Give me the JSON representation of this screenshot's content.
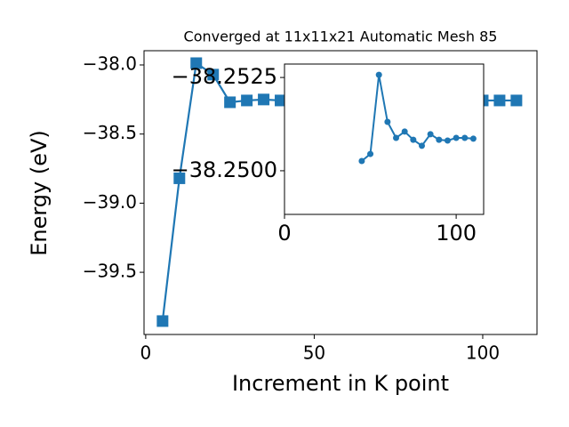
{
  "chart_data": [
    {
      "type": "line",
      "title": "Converged at 11x11x21 Automatic Mesh 85",
      "xlabel": "Increment in K point",
      "ylabel": "Energy (eV)",
      "marker": "square",
      "color": "#1f77b4",
      "x": [
        5,
        10,
        15,
        20,
        25,
        30,
        35,
        40,
        100,
        105,
        110
      ],
      "values": [
        -39.853,
        -38.82,
        -37.987,
        -38.07,
        -38.27,
        -38.257,
        -38.25,
        -38.257,
        -38.257,
        -38.257,
        -38.257
      ],
      "xlim": [
        -0.5,
        116.1
      ],
      "ylim": [
        -39.95,
        -37.897
      ],
      "xticks": [
        0,
        50,
        100
      ],
      "yticks": [
        {
          "value": -38.0,
          "label": "−38.0"
        },
        {
          "value": -38.5,
          "label": "−38.5"
        },
        {
          "value": -39.0,
          "label": "−39.0"
        },
        {
          "value": -39.5,
          "label": "−39.5"
        }
      ]
    },
    {
      "type": "line",
      "marker": "circle",
      "color": "#1f77b4",
      "x": [
        45,
        50,
        55,
        60,
        65,
        70,
        75,
        80,
        85,
        90,
        95,
        100,
        105,
        110
      ],
      "values": [
        -38.25026,
        -38.25045,
        -38.25257,
        -38.25131,
        -38.25088,
        -38.25105,
        -38.25083,
        -38.25067,
        -38.25098,
        -38.25083,
        -38.25081,
        -38.25088,
        -38.25088,
        -38.25086
      ],
      "xlim": [
        0,
        116
      ],
      "ylim": [
        -38.24883,
        -38.25286
      ],
      "xticks": [
        0,
        100
      ],
      "yticks": [
        {
          "value": -38.2525,
          "label": "−38.2525"
        },
        {
          "value": -38.25,
          "label": "−38.2500"
        }
      ]
    }
  ]
}
